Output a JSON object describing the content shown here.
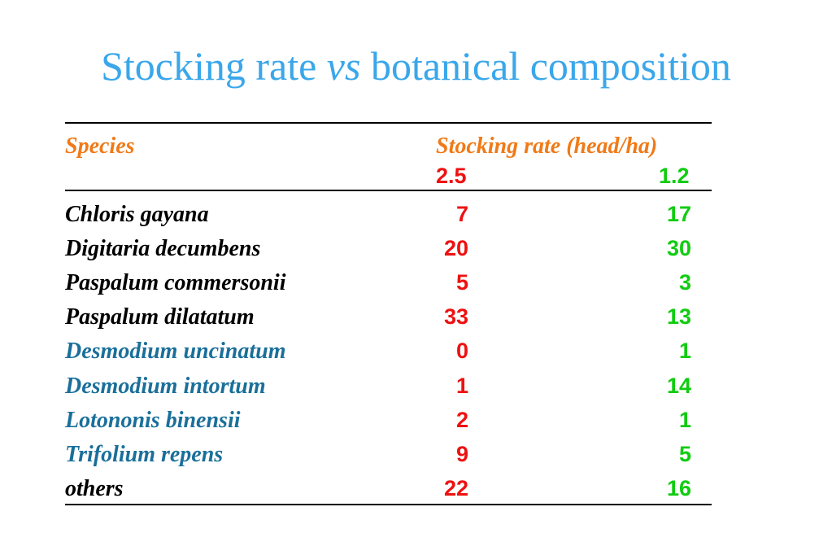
{
  "title": {
    "part1": "Stocking rate ",
    "part2": "vs",
    "part3": " botanical composition"
  },
  "header": {
    "species": "Species",
    "stocking": "Stocking rate (head/ha)",
    "rate1": "2.5",
    "rate2": "1.2"
  },
  "colors": {
    "title": "#3aa7ea",
    "header": "#f07a17",
    "col1": "#ee1111",
    "col2": "#11cc11",
    "grass": "#000000",
    "legume": "#1a6f9a"
  },
  "rows": [
    {
      "species": "Chloris gayana",
      "v1": "7",
      "v2": "17",
      "group": "grass"
    },
    {
      "species": "Digitaria decumbens",
      "v1": "20",
      "v2": "30",
      "group": "grass"
    },
    {
      "species": "Paspalum commersonii",
      "v1": "5",
      "v2": "3",
      "group": "grass"
    },
    {
      "species": "Paspalum dilatatum",
      "v1": "33",
      "v2": "13",
      "group": "grass"
    },
    {
      "species": "Desmodium uncinatum",
      "v1": "0",
      "v2": "1",
      "group": "legume"
    },
    {
      "species": "Desmodium intortum",
      "v1": "1",
      "v2": "14",
      "group": "legume"
    },
    {
      "species": "Lotononis binensii",
      "v1": "2",
      "v2": "1",
      "group": "legume"
    },
    {
      "species": "Trifolium repens",
      "v1": "9",
      "v2": "5",
      "group": "legume"
    },
    {
      "species": "others",
      "v1": "22",
      "v2": "16",
      "group": "grass"
    }
  ]
}
